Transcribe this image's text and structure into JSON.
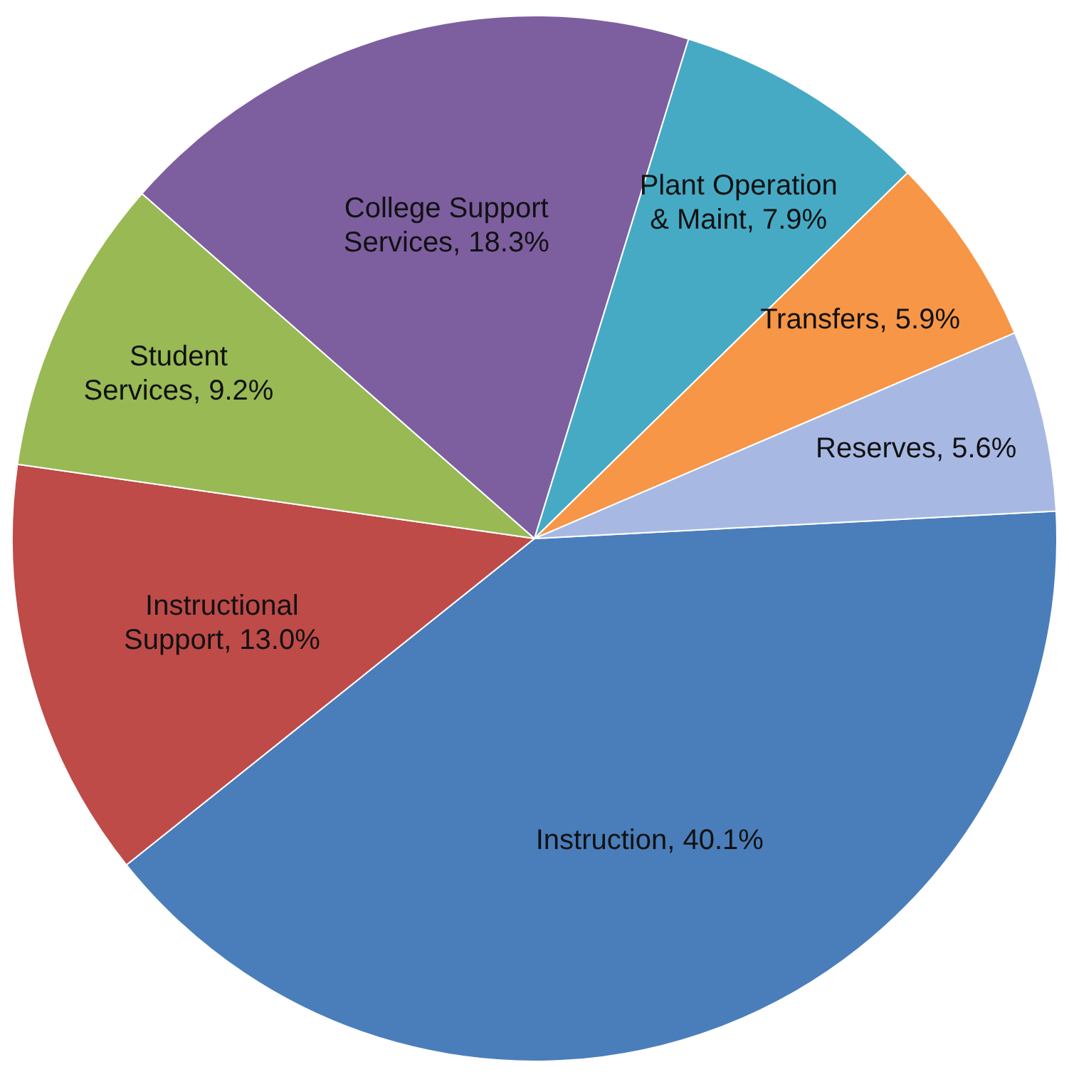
{
  "chart_data": {
    "type": "pie",
    "categories": [
      "Instruction",
      "Instructional Support",
      "Student Services",
      "College Support Services",
      "Plant Operation & Maint",
      "Transfers",
      "Reserves"
    ],
    "values": [
      40.1,
      13.0,
      9.2,
      18.3,
      7.9,
      5.9,
      5.6
    ],
    "colors": [
      "#4a7ebb",
      "#be4b48",
      "#98b954",
      "#7d5fa0",
      "#46aac5",
      "#f79646",
      "#a7b9e3"
    ],
    "value_labels": [
      "40.1%",
      "13.0%",
      "9.2%",
      "18.3%",
      "7.9%",
      "5.9%",
      "5.6%"
    ],
    "legend": false
  }
}
